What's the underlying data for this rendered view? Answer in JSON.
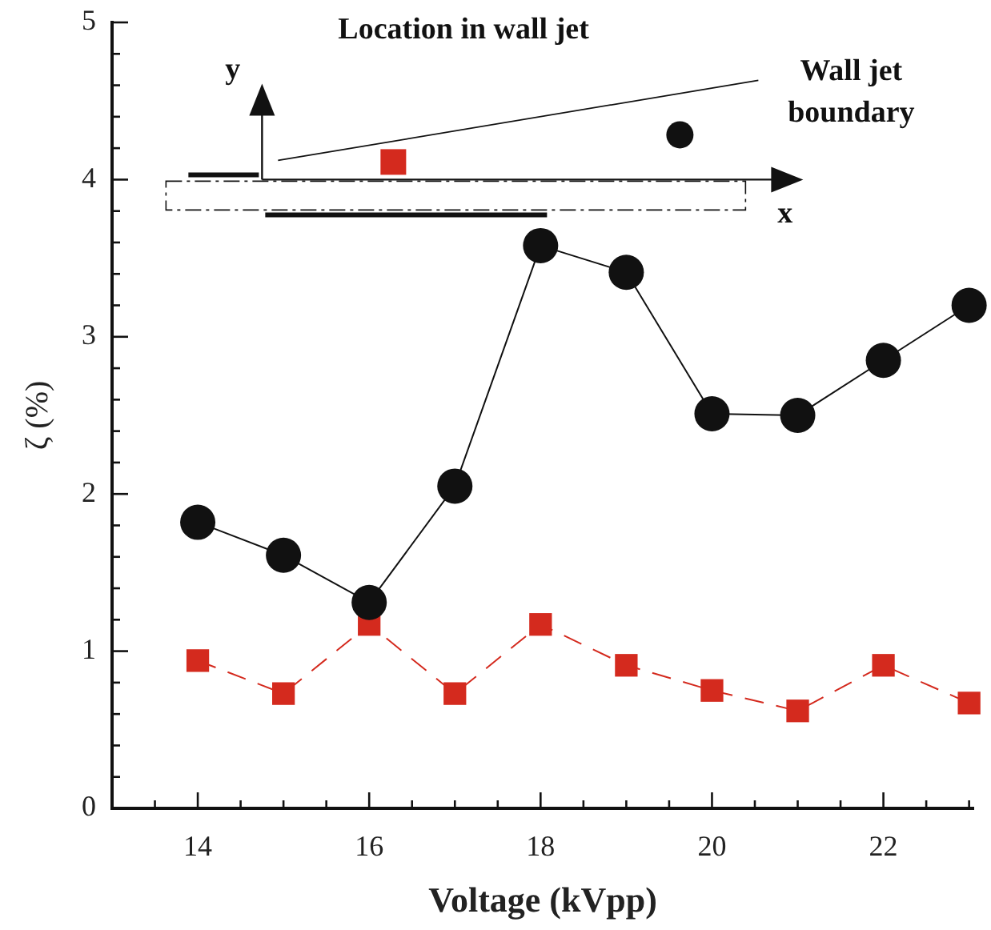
{
  "chart_data": {
    "type": "line",
    "xlabel": "Voltage (kVpp)",
    "ylabel": "ζ (%)",
    "x": [
      14,
      15,
      16,
      17,
      18,
      19,
      20,
      21,
      22,
      23
    ],
    "series": [
      {
        "color": "#111111",
        "marker": "circle",
        "line_style": "solid",
        "values": [
          1.82,
          1.61,
          1.31,
          2.05,
          3.58,
          3.41,
          2.51,
          2.5,
          2.85,
          3.2
        ]
      },
      {
        "color": "#d42a1e",
        "marker": "square",
        "line_style": "dashed",
        "values": [
          0.94,
          0.73,
          1.17,
          0.73,
          1.17,
          0.91,
          0.75,
          0.62,
          0.91,
          0.67
        ]
      }
    ],
    "xlim": [
      13,
      23.05
    ],
    "xticks": [
      {
        "value": 13.5,
        "label": null
      },
      14,
      {
        "value": 14.5,
        "label": null
      },
      {
        "value": 15,
        "label": null
      },
      {
        "value": 15.5,
        "label": null
      },
      16,
      {
        "value": 16.5,
        "label": null
      },
      {
        "value": 17,
        "label": null
      },
      {
        "value": 17.5,
        "label": null
      },
      18,
      {
        "value": 18.5,
        "label": null
      },
      {
        "value": 19,
        "label": null
      },
      {
        "value": 19.5,
        "label": null
      },
      20,
      {
        "value": 20.5,
        "label": null
      },
      {
        "value": 21,
        "label": null
      },
      {
        "value": 21.5,
        "label": null
      },
      22,
      {
        "value": 22.5,
        "label": null
      },
      {
        "value": 23,
        "label": null
      }
    ],
    "ylim": [
      0,
      5
    ],
    "yticks": [
      0,
      {
        "value": 0.2,
        "label": null
      },
      {
        "value": 0.4,
        "label": null
      },
      {
        "value": 0.6,
        "label": null
      },
      {
        "value": 0.8,
        "label": null
      },
      1,
      {
        "value": 1.2,
        "label": null
      },
      {
        "value": 1.4,
        "label": null
      },
      {
        "value": 1.6,
        "label": null
      },
      {
        "value": 1.8,
        "label": null
      },
      2,
      {
        "value": 2.2,
        "label": null
      },
      {
        "value": 2.4,
        "label": null
      },
      {
        "value": 2.6,
        "label": null
      },
      {
        "value": 2.8,
        "label": null
      },
      3,
      {
        "value": 3.2,
        "label": null
      },
      {
        "value": 3.4,
        "label": null
      },
      {
        "value": 3.6,
        "label": null
      },
      {
        "value": 3.8,
        "label": null
      },
      4,
      {
        "value": 4.2,
        "label": null
      },
      {
        "value": 4.4,
        "label": null
      },
      {
        "value": 4.6,
        "label": null
      },
      {
        "value": 4.8,
        "label": null
      },
      5
    ],
    "annotations": [
      "Location in wall jet",
      "Wall jet boundary",
      "x",
      "y"
    ],
    "grid": false,
    "legend": false
  }
}
